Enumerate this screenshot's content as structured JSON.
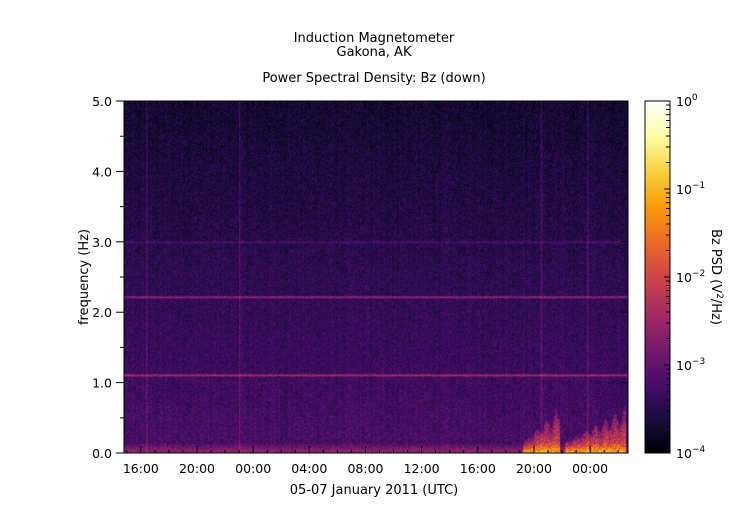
{
  "chart_data": {
    "type": "heatmap",
    "title": "Induction Magnetometer",
    "subtitle": "Gakona, AK",
    "plot_title": "Power Spectral Density: Bz (down)",
    "xlabel": "05-07 January 2011 (UTC)",
    "ylabel": "frequency (Hz)",
    "x_ticks": [
      "16:00",
      "20:00",
      "00:00",
      "04:00",
      "08:00",
      "12:00",
      "16:00",
      "20:00",
      "00:00"
    ],
    "x_range_hours": [
      14.8,
      50.7
    ],
    "x_tick_hours": [
      16,
      20,
      24,
      28,
      32,
      36,
      40,
      44,
      48
    ],
    "y_ticks": [
      "0.0",
      "1.0",
      "2.0",
      "3.0",
      "4.0",
      "5.0"
    ],
    "y_tick_values": [
      0,
      1,
      2,
      3,
      4,
      5
    ],
    "ylim": [
      0,
      5
    ],
    "colorbar": {
      "label_prefix": "Bz PSD (V",
      "label_sup": "2",
      "label_suffix": "/Hz)",
      "scale": "log",
      "range": [
        0.0001,
        1
      ],
      "tick_exponents": [
        "0",
        "−1",
        "−2",
        "−3",
        "−4"
      ],
      "tick_values": [
        1,
        0.1,
        0.01,
        0.001,
        0.0001
      ],
      "colormap": [
        "#000004",
        "#1b0c41",
        "#4a0c6b",
        "#781c6d",
        "#a52c60",
        "#cf4446",
        "#ed6925",
        "#fb9b06",
        "#f7d13d",
        "#fcffa4",
        "#ffffff"
      ]
    },
    "features": {
      "lines_hz": [
        1.11,
        2.22,
        3.0
      ],
      "vertical_lines_hours": [
        16.4,
        23.0,
        44.5,
        47.8
      ],
      "activity_windows_hours": [
        [
          43.2,
          45.8
        ],
        [
          46.2,
          50.5
        ]
      ]
    }
  }
}
